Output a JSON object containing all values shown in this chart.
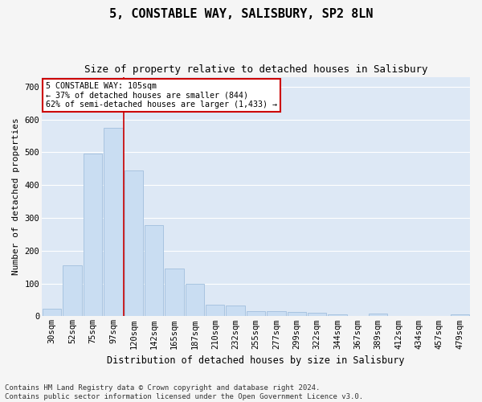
{
  "title": "5, CONSTABLE WAY, SALISBURY, SP2 8LN",
  "subtitle": "Size of property relative to detached houses in Salisbury",
  "xlabel": "Distribution of detached houses by size in Salisbury",
  "ylabel": "Number of detached properties",
  "footer_line1": "Contains HM Land Registry data © Crown copyright and database right 2024.",
  "footer_line2": "Contains public sector information licensed under the Open Government Licence v3.0.",
  "bar_labels": [
    "30sqm",
    "52sqm",
    "75sqm",
    "97sqm",
    "120sqm",
    "142sqm",
    "165sqm",
    "187sqm",
    "210sqm",
    "232sqm",
    "255sqm",
    "277sqm",
    "299sqm",
    "322sqm",
    "344sqm",
    "367sqm",
    "389sqm",
    "412sqm",
    "434sqm",
    "457sqm",
    "479sqm"
  ],
  "bar_values": [
    22,
    155,
    497,
    574,
    445,
    278,
    145,
    99,
    35,
    32,
    15,
    16,
    12,
    10,
    6,
    0,
    8,
    0,
    0,
    0,
    6
  ],
  "bar_color": "#c9ddf2",
  "bar_edge_color": "#a8c4e0",
  "fig_bg_color": "#f5f5f5",
  "ax_bg_color": "#dde8f5",
  "grid_color": "#ffffff",
  "annotation_text": "5 CONSTABLE WAY: 105sqm\n← 37% of detached houses are smaller (844)\n62% of semi-detached houses are larger (1,433) →",
  "annotation_box_facecolor": "#ffffff",
  "annotation_box_edgecolor": "#cc0000",
  "vline_color": "#cc0000",
  "vline_x": 3.52,
  "ylim": [
    0,
    730
  ],
  "yticks": [
    0,
    100,
    200,
    300,
    400,
    500,
    600,
    700
  ],
  "title_fontsize": 11,
  "subtitle_fontsize": 9,
  "tick_fontsize": 7.5,
  "ylabel_fontsize": 8,
  "xlabel_fontsize": 8.5,
  "footer_fontsize": 6.5
}
